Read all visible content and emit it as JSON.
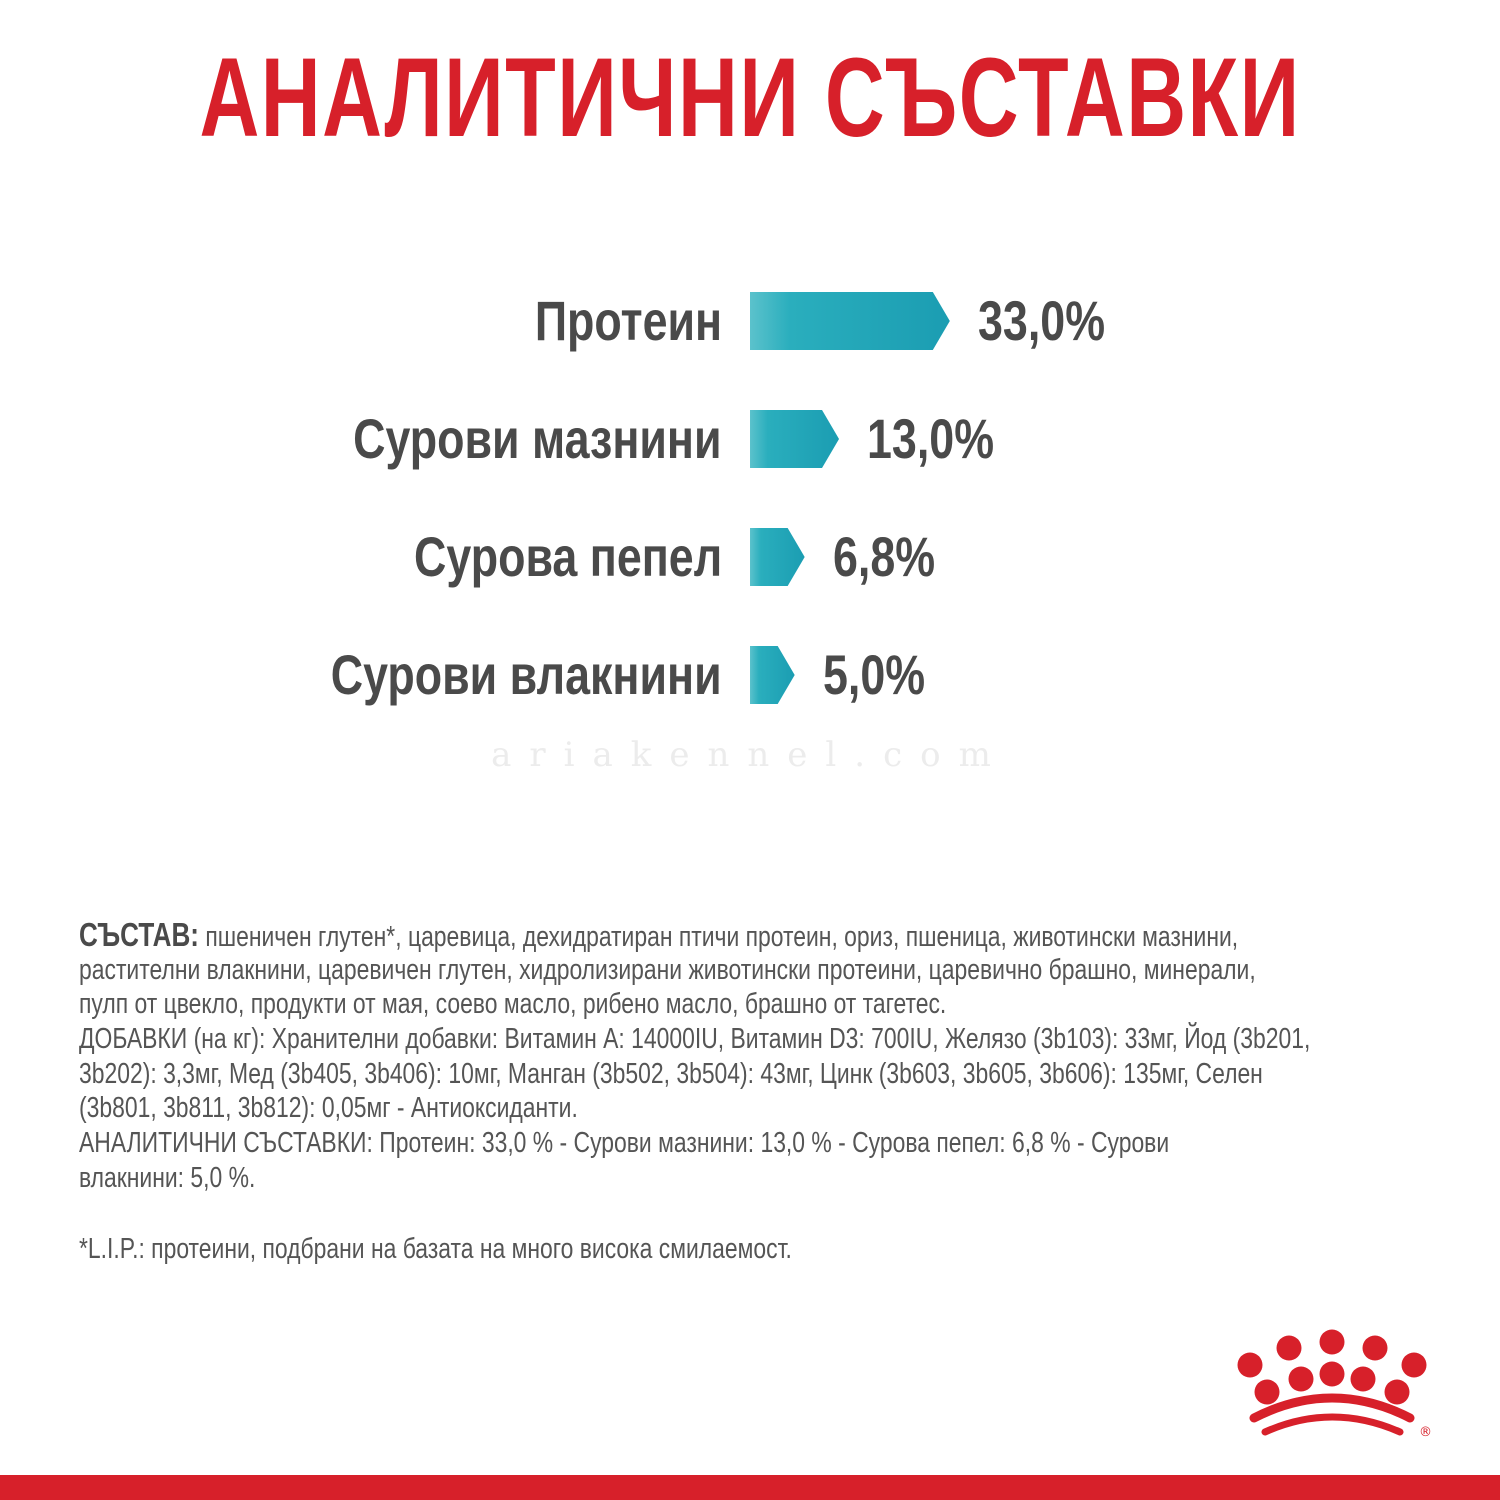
{
  "title": "АНАЛИТИЧНИ СЪСТАВКИ",
  "chart_data": {
    "type": "bar",
    "orientation": "horizontal",
    "categories": [
      "Протеин",
      "Сурови мазнини",
      "Сурова пепел",
      "Сурови влакнини"
    ],
    "values": [
      33.0,
      13.0,
      6.8,
      5.0
    ],
    "value_labels": [
      "33,0%",
      "13,0%",
      "6,8%",
      "5,0%"
    ],
    "unit": "%",
    "bar_color": "#1b9db2",
    "grid": false
  },
  "watermark": "ariakennel.com",
  "composition": {
    "heading": "СЪСТАВ:",
    "lines": [
      " пшеничен глутен*, царевица, дехидратиран птичи протеин, ориз, пшеница, животински мазнини,",
      "растителни влакнини, царевичен глутен, хидролизирани животински протеини, царевично брашно, минерали,",
      "пулп от цвекло, продукти от мая, соево масло, рибено масло, брашно от тагетес.",
      "ДОБАВКИ (на кг): Хранителни добавки: Витамин А: 14000IU, Витамин D3: 700IU, Желязо (3b103): 33мг, Йод (3b201,",
      "3b202): 3,3мг, Мед (3b405, 3b406): 10мг, Манган (3b502, 3b504): 43мг, Цинк (3b603, 3b605, 3b606): 135мг, Селен",
      "(3b801, 3b811, 3b812): 0,05мг - Антиоксиданти.",
      "АНАЛИТИЧНИ СЪСТАВКИ: Протеин: 33,0 % - Сурови мазнини: 13,0 % - Сурова пепел: 6,8 % - Сурови",
      "влакнини: 5,0 %."
    ],
    "footnote": "*L.I.P.: протеини, подбрани на базата на много висока смилаемост."
  },
  "brand": {
    "logo": "royal-canin-crown-logo",
    "color": "#d7202a"
  }
}
